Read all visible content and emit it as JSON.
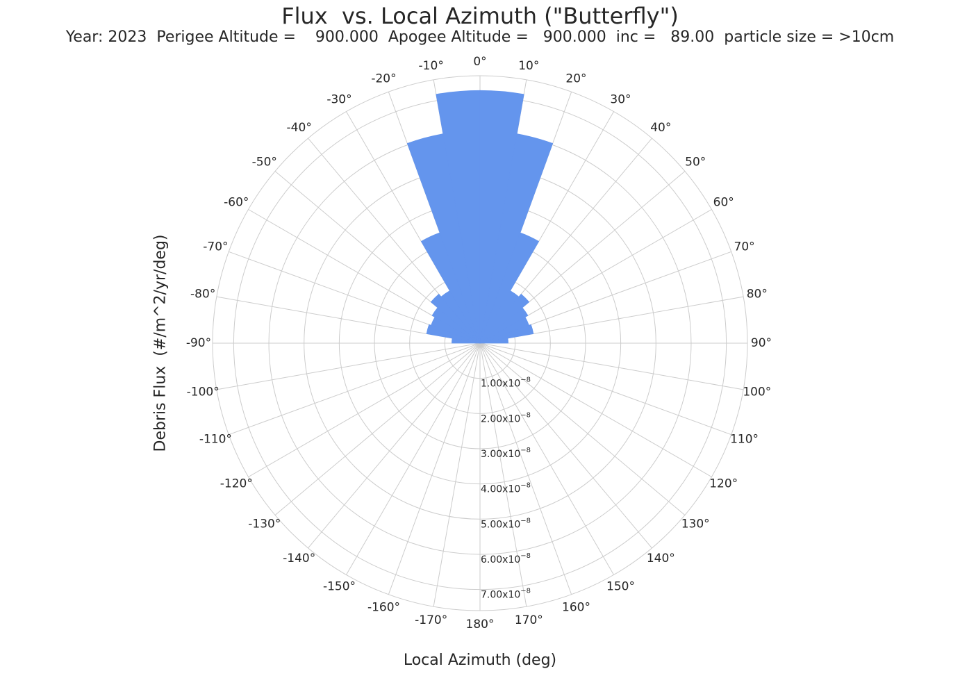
{
  "chart_data": {
    "type": "polar-bar",
    "title": "Flux  vs. Local Azimuth (\"Butterfly\")",
    "subtitle": "Year: 2023  Perigee Altitude =    900.000  Apogee Altitude =   900.000  inc =   89.00  particle size = >10cm",
    "xlabel": "Local Azimuth (deg)",
    "ylabel": "Debris Flux  (#/m^2/yr/deg)",
    "theta_zero": "top",
    "theta_direction": "clockwise",
    "bin_width_deg": 10,
    "r_max": 7.6e-08,
    "angle_ticks": [
      "0°",
      "10°",
      "20°",
      "30°",
      "40°",
      "50°",
      "60°",
      "70°",
      "80°",
      "90°",
      "100°",
      "110°",
      "120°",
      "130°",
      "140°",
      "150°",
      "160°",
      "170°",
      "180°",
      "-170°",
      "-160°",
      "-150°",
      "-140°",
      "-130°",
      "-120°",
      "-110°",
      "-100°",
      "-90°",
      "-80°",
      "-70°",
      "-60°",
      "-50°",
      "-40°",
      "-30°",
      "-20°",
      "-10°"
    ],
    "radial_ticks": [
      {
        "value": 1e-08,
        "mantissa": "1.00x10",
        "exponent": "−8"
      },
      {
        "value": 2e-08,
        "mantissa": "2.00x10",
        "exponent": "−8"
      },
      {
        "value": 3e-08,
        "mantissa": "3.00x10",
        "exponent": "−8"
      },
      {
        "value": 4e-08,
        "mantissa": "4.00x10",
        "exponent": "−8"
      },
      {
        "value": 5e-08,
        "mantissa": "5.00x10",
        "exponent": "−8"
      },
      {
        "value": 6e-08,
        "mantissa": "6.00x10",
        "exponent": "−8"
      },
      {
        "value": 7e-08,
        "mantissa": "7.00x10",
        "exponent": "−8"
      }
    ],
    "grid": true,
    "bar_color": "#6495ED",
    "grid_color": "#cccccc",
    "series": [
      {
        "azimuth_deg": [
          -85,
          -75,
          -65,
          -55,
          -45,
          -35,
          -25,
          -15,
          -5,
          5,
          15,
          25,
          35,
          45,
          55,
          65,
          75,
          85
        ],
        "values": [
          8e-09,
          1.54e-08,
          1.48e-08,
          1.57e-08,
          1.82e-08,
          1.72e-08,
          3.34e-08,
          6.04e-08,
          7.18e-08,
          7.18e-08,
          6.04e-08,
          3.34e-08,
          1.72e-08,
          1.82e-08,
          1.57e-08,
          1.48e-08,
          1.54e-08,
          8e-09
        ]
      }
    ]
  }
}
